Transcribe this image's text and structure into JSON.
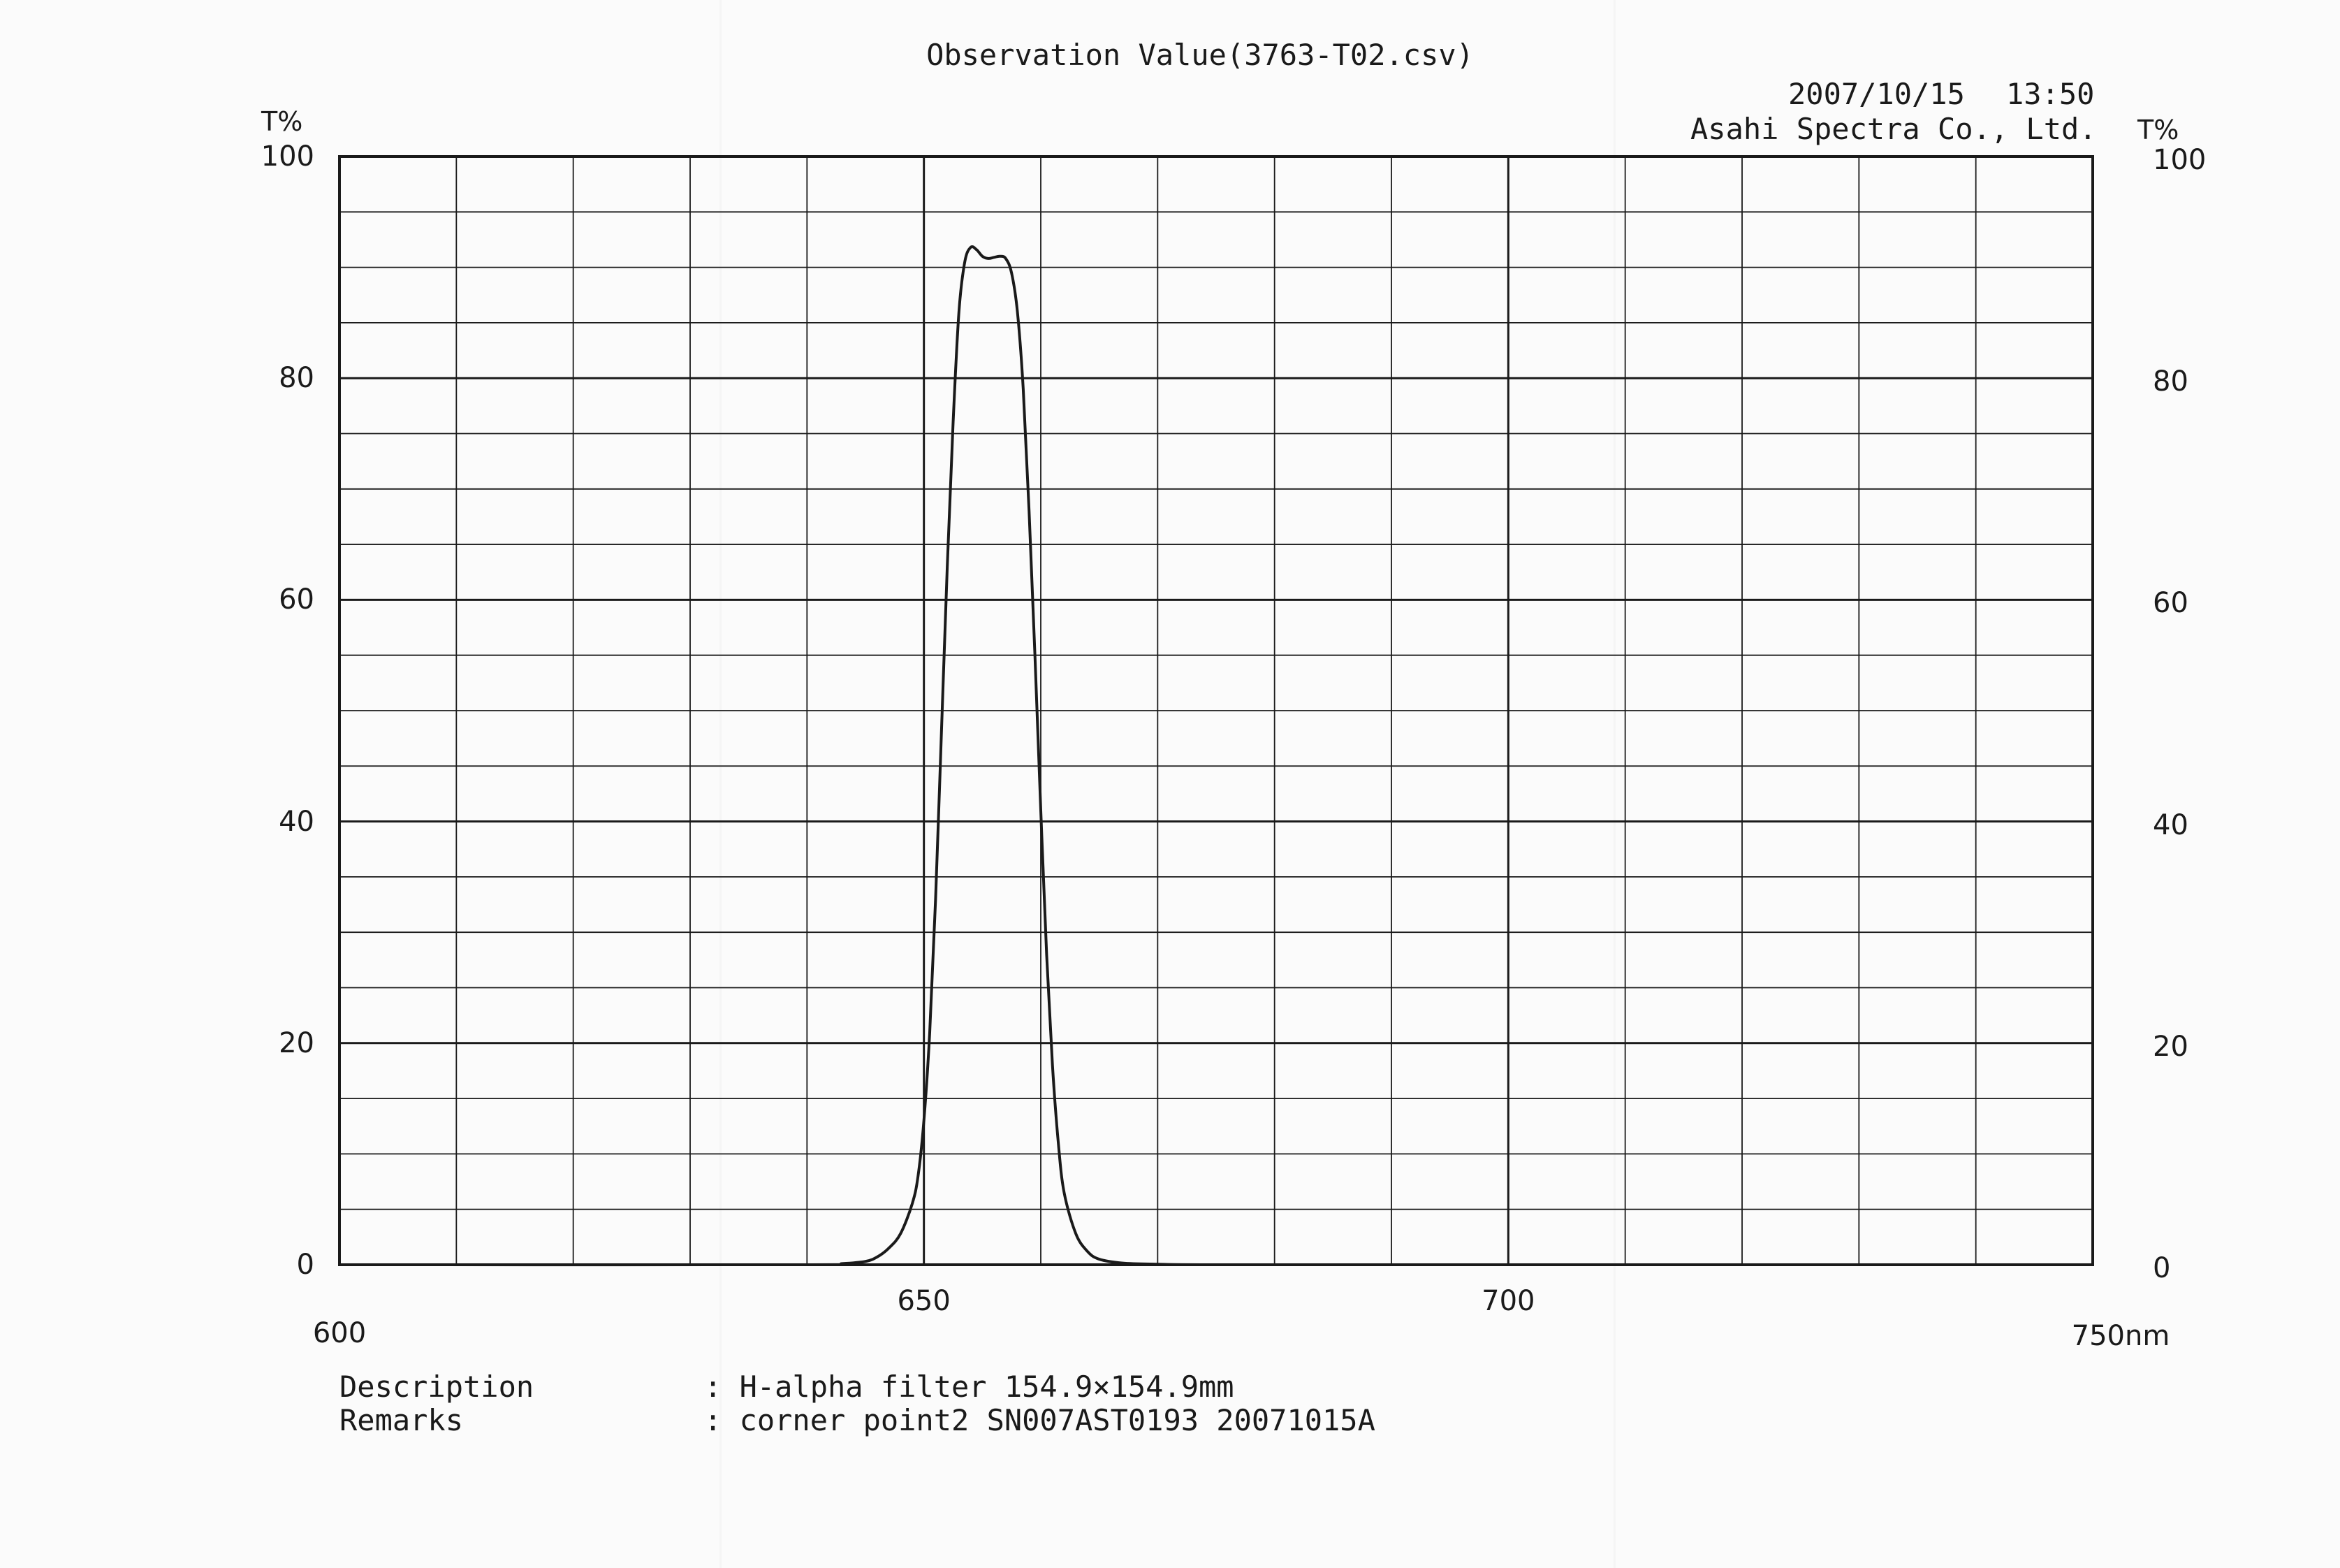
{
  "header": {
    "title": "Observation Value(3763-T02.csv)",
    "date": "2007/10/15",
    "time": "13:50",
    "company": "Asahi Spectra Co., Ltd."
  },
  "footer": {
    "description_label": "Description",
    "description_value": ": H-alpha filter 154.9×154.9mm",
    "remarks_label": "Remarks",
    "remarks_value": ": corner point2 SN007AST0193 20071015A"
  },
  "chart_data": {
    "type": "line",
    "title": "Observation Value(3763-T02.csv)",
    "ylabel_left": "T%",
    "ylabel_right": "T%",
    "xunit": "nm",
    "xlim": [
      600,
      750
    ],
    "ylim": [
      0,
      100
    ],
    "grid": true,
    "x_ticks": [
      {
        "value": 600,
        "label": "600"
      },
      {
        "value": 650,
        "label": "650"
      },
      {
        "value": 700,
        "label": "700"
      },
      {
        "value": 750,
        "label": "750nm"
      }
    ],
    "y_ticks": [
      {
        "value": 0,
        "label": "0"
      },
      {
        "value": 20,
        "label": "20"
      },
      {
        "value": 40,
        "label": "40"
      },
      {
        "value": 60,
        "label": "60"
      },
      {
        "value": 80,
        "label": "80"
      },
      {
        "value": 100,
        "label": "100"
      }
    ],
    "series": [
      {
        "x": [
          600,
          640,
          643,
          645,
          646,
          647,
          648,
          649,
          649.5,
          650,
          650.5,
          651,
          651.5,
          652,
          652.5,
          653,
          653.5,
          654,
          654.5,
          655,
          655.5,
          656,
          656.5,
          657,
          657.5,
          658,
          658.5,
          659,
          659.5,
          660,
          660.5,
          661,
          661.5,
          662,
          663,
          664,
          665,
          667,
          670,
          675,
          700,
          750
        ],
        "y": [
          0,
          0,
          0.1,
          0.3,
          0.7,
          1.5,
          2.8,
          5.5,
          8,
          13,
          21,
          33,
          48,
          63,
          76,
          86,
          90.5,
          91.8,
          91.6,
          91,
          90.8,
          90.9,
          91,
          90.8,
          89.5,
          86,
          79,
          68,
          55,
          41,
          28,
          18,
          11,
          6.5,
          2.8,
          1.2,
          0.5,
          0.15,
          0.05,
          0,
          0,
          0
        ]
      }
    ]
  }
}
